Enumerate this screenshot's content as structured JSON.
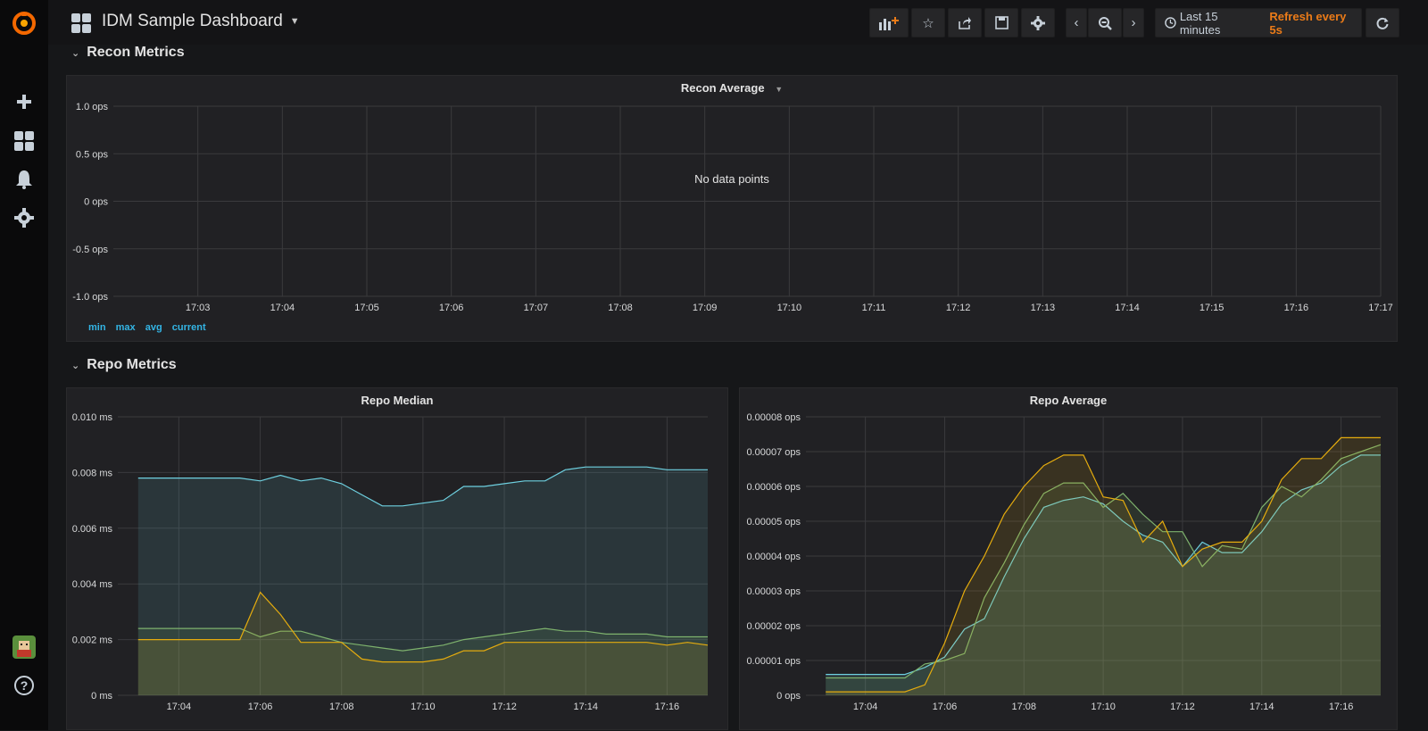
{
  "app": {
    "title": "IDM Sample Dashboard"
  },
  "toolbar": {
    "time_range": "Last 15 minutes",
    "refresh": "Refresh every 5s"
  },
  "colors": {
    "accent": "#eb7b18",
    "blue": "#7eb26d",
    "series_blue": "#6ed0e0",
    "series_yellow": "#e5ac0e",
    "series_green": "#7eb26d",
    "link": "#33b5e5"
  },
  "rows": [
    {
      "title": "Recon Metrics"
    },
    {
      "title": "Repo Metrics"
    }
  ],
  "recon_panel": {
    "title": "Recon Average",
    "empty_text": "No data points",
    "legend": [
      "min",
      "max",
      "avg",
      "current"
    ]
  },
  "repo_median_panel": {
    "title": "Repo Median"
  },
  "repo_average_panel": {
    "title": "Repo Average"
  },
  "chart_data": [
    {
      "type": "line",
      "title": "Recon Average",
      "y_ticks": [
        "1.0 ops",
        "0.5 ops",
        "0 ops",
        "-0.5 ops",
        "-1.0 ops"
      ],
      "x_ticks": [
        "17:03",
        "17:04",
        "17:05",
        "17:06",
        "17:07",
        "17:08",
        "17:09",
        "17:10",
        "17:11",
        "17:12",
        "17:13",
        "17:14",
        "17:15",
        "17:16",
        "17:17"
      ],
      "ylim": [
        -1.0,
        1.0
      ],
      "series": []
    },
    {
      "type": "area",
      "title": "Repo Median",
      "y_ticks": [
        "0.010 ms",
        "0.008 ms",
        "0.006 ms",
        "0.004 ms",
        "0.002 ms",
        "0 ms"
      ],
      "x_ticks": [
        "17:04",
        "17:06",
        "17:08",
        "17:10",
        "17:12",
        "17:14",
        "17:16"
      ],
      "ylim": [
        0,
        0.01
      ],
      "x": [
        17.03,
        17.04,
        17.05,
        17.055,
        17.06,
        17.065,
        17.07,
        17.075,
        17.08,
        17.085,
        17.09,
        17.095,
        17.1,
        17.105,
        17.11,
        17.115,
        17.12,
        17.125,
        17.13,
        17.135,
        17.14,
        17.145,
        17.15,
        17.155,
        17.16,
        17.165,
        17.17
      ],
      "series": [
        {
          "color": "#6ed0e0",
          "values": [
            0.0078,
            0.0078,
            0.0078,
            0.0078,
            0.0077,
            0.0079,
            0.0077,
            0.0078,
            0.0076,
            0.0072,
            0.0068,
            0.0068,
            0.0069,
            0.007,
            0.0075,
            0.0075,
            0.0076,
            0.0077,
            0.0077,
            0.0081,
            0.0082,
            0.0082,
            0.0082,
            0.0082,
            0.0081,
            0.0081,
            0.0081
          ]
        },
        {
          "color": "#7eb26d",
          "values": [
            0.0024,
            0.0024,
            0.0024,
            0.0024,
            0.0021,
            0.0023,
            0.0023,
            0.0021,
            0.0019,
            0.0018,
            0.0017,
            0.0016,
            0.0017,
            0.0018,
            0.002,
            0.0021,
            0.0022,
            0.0023,
            0.0024,
            0.0023,
            0.0023,
            0.0022,
            0.0022,
            0.0022,
            0.0021,
            0.0021,
            0.0021
          ]
        },
        {
          "color": "#e5ac0e",
          "values": [
            0.002,
            0.002,
            0.002,
            0.002,
            0.0037,
            0.0029,
            0.0019,
            0.0019,
            0.0019,
            0.0013,
            0.0012,
            0.0012,
            0.0012,
            0.0013,
            0.0016,
            0.0016,
            0.0019,
            0.0019,
            0.0019,
            0.0019,
            0.0019,
            0.0019,
            0.0019,
            0.0019,
            0.0018,
            0.0019,
            0.0018
          ]
        }
      ]
    },
    {
      "type": "area",
      "title": "Repo Average",
      "y_ticks": [
        "0.00008 ops",
        "0.00007 ops",
        "0.00006 ops",
        "0.00005 ops",
        "0.00004 ops",
        "0.00003 ops",
        "0.00002 ops",
        "0.00001 ops",
        "0 ops"
      ],
      "x_ticks": [
        "17:04",
        "17:06",
        "17:08",
        "17:10",
        "17:12",
        "17:14",
        "17:16"
      ],
      "ylim": [
        0,
        8e-05
      ],
      "x": [
        17.03,
        17.04,
        17.05,
        17.055,
        17.06,
        17.065,
        17.07,
        17.075,
        17.08,
        17.085,
        17.09,
        17.095,
        17.1,
        17.105,
        17.11,
        17.115,
        17.12,
        17.125,
        17.13,
        17.135,
        17.14,
        17.145,
        17.15,
        17.155,
        17.16,
        17.165,
        17.17
      ],
      "series": [
        {
          "color": "#6ed0e0",
          "values": [
            6e-06,
            6e-06,
            6e-06,
            8e-06,
            1.1e-05,
            1.9e-05,
            2.2e-05,
            3.4e-05,
            4.5e-05,
            5.4e-05,
            5.6e-05,
            5.7e-05,
            5.5e-05,
            5e-05,
            4.6e-05,
            4.4e-05,
            3.7e-05,
            4.4e-05,
            4.1e-05,
            4.1e-05,
            4.7e-05,
            5.5e-05,
            5.9e-05,
            6.1e-05,
            6.6e-05,
            6.9e-05,
            6.9e-05
          ]
        },
        {
          "color": "#7eb26d",
          "values": [
            5e-06,
            5e-06,
            5e-06,
            9e-06,
            1e-05,
            1.2e-05,
            2.8e-05,
            3.8e-05,
            4.9e-05,
            5.8e-05,
            6.1e-05,
            6.1e-05,
            5.4e-05,
            5.8e-05,
            5.2e-05,
            4.7e-05,
            4.7e-05,
            3.7e-05,
            4.3e-05,
            4.2e-05,
            5.4e-05,
            6e-05,
            5.7e-05,
            6.2e-05,
            6.8e-05,
            7e-05,
            7.2e-05
          ]
        },
        {
          "color": "#e5ac0e",
          "values": [
            1e-06,
            1e-06,
            1e-06,
            3e-06,
            1.5e-05,
            3e-05,
            4e-05,
            5.2e-05,
            6e-05,
            6.6e-05,
            6.9e-05,
            6.9e-05,
            5.7e-05,
            5.6e-05,
            4.4e-05,
            5e-05,
            3.7e-05,
            4.2e-05,
            4.4e-05,
            4.4e-05,
            5e-05,
            6.2e-05,
            6.8e-05,
            6.8e-05,
            7.4e-05,
            7.4e-05,
            7.4e-05
          ]
        }
      ]
    }
  ]
}
